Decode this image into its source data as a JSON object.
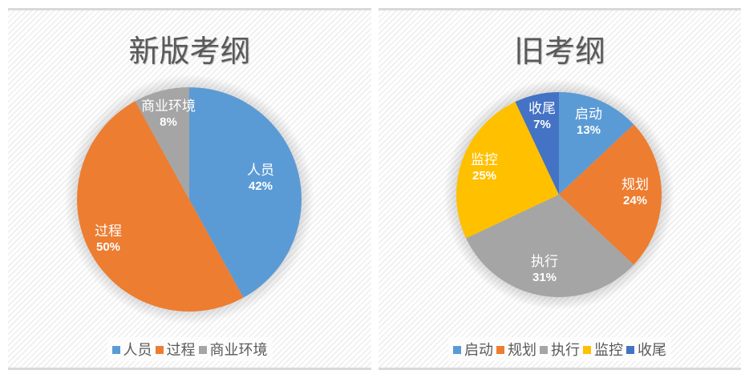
{
  "chart_data": [
    {
      "type": "pie",
      "title": "新版考纲",
      "categories": [
        "人员",
        "过程",
        "商业环境"
      ],
      "values": [
        42,
        50,
        8
      ],
      "labels": [
        "42%",
        "50%",
        "8%"
      ],
      "colors": [
        "#5b9bd5",
        "#ed7d31",
        "#a5a5a5"
      ],
      "legend_position": "bottom",
      "start_angle_deg": 0,
      "direction": "clockwise"
    },
    {
      "type": "pie",
      "title": "旧考纲",
      "categories": [
        "启动",
        "规划",
        "执行",
        "监控",
        "收尾"
      ],
      "values": [
        13,
        24,
        31,
        25,
        7
      ],
      "labels": [
        "13%",
        "24%",
        "31%",
        "25%",
        "7%"
      ],
      "colors": [
        "#5b9bd5",
        "#ed7d31",
        "#a5a5a5",
        "#ffc000",
        "#4472c4"
      ],
      "legend_position": "bottom",
      "start_angle_deg": 0,
      "direction": "clockwise"
    }
  ],
  "left": {
    "title": "新版考纲",
    "slices": [
      {
        "name": "人员",
        "pct": "42%"
      },
      {
        "name": "过程",
        "pct": "50%"
      },
      {
        "name": "商业环境",
        "pct": "8%"
      }
    ]
  },
  "right": {
    "title": "旧考纲",
    "slices": [
      {
        "name": "启动",
        "pct": "13%"
      },
      {
        "name": "规划",
        "pct": "24%"
      },
      {
        "name": "执行",
        "pct": "31%"
      },
      {
        "name": "监控",
        "pct": "25%"
      },
      {
        "name": "收尾",
        "pct": "7%"
      }
    ]
  }
}
